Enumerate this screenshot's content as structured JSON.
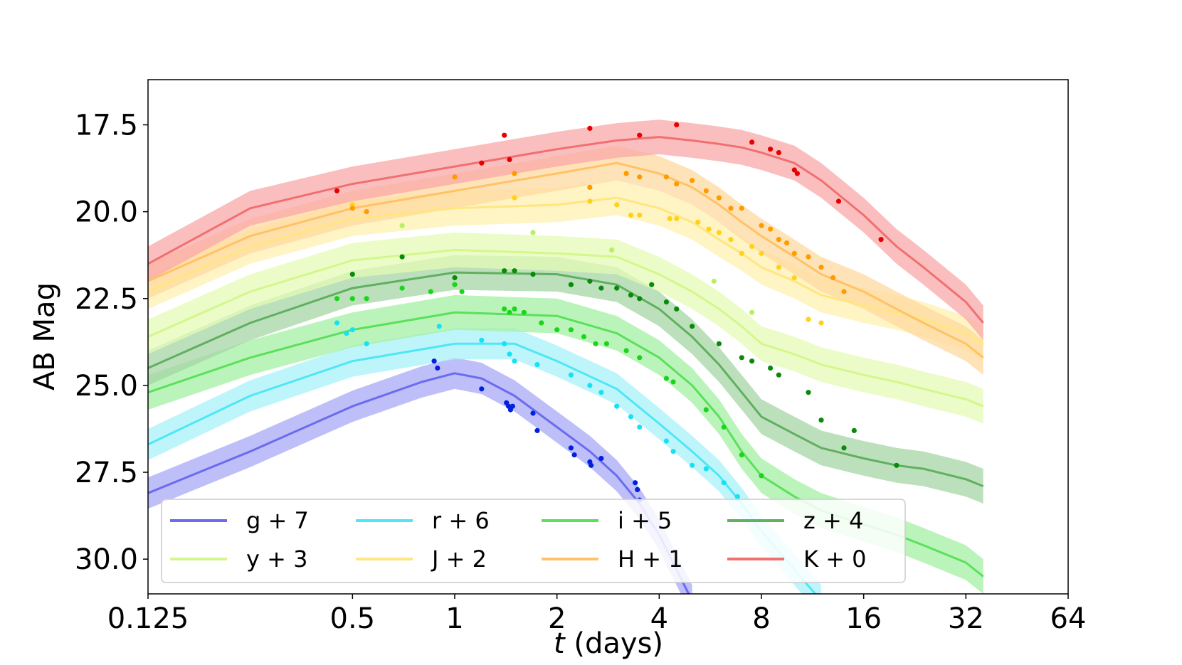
{
  "chart_data": {
    "type": "line",
    "title": "",
    "xlabel_italic": "t",
    "xlabel_rest": " (days)",
    "ylabel": "AB Mag",
    "x_scale": "log2",
    "xlim": [
      0.125,
      64
    ],
    "ylim": [
      31.0,
      16.2
    ],
    "y_inverted": true,
    "grid": false,
    "legend_placement": "lower-left",
    "legend_columns": 4,
    "x_ticks": [
      {
        "value": 0.125,
        "label": "0.125"
      },
      {
        "value": 0.5,
        "label": "0.5"
      },
      {
        "value": 1,
        "label": "1"
      },
      {
        "value": 2,
        "label": "2"
      },
      {
        "value": 4,
        "label": "4"
      },
      {
        "value": 8,
        "label": "8"
      },
      {
        "value": 16,
        "label": "16"
      },
      {
        "value": 32,
        "label": "32"
      },
      {
        "value": 64,
        "label": "64"
      }
    ],
    "y_ticks": [
      {
        "value": 17.5,
        "label": "17.5"
      },
      {
        "value": 20.0,
        "label": "20.0"
      },
      {
        "value": 22.5,
        "label": "22.5"
      },
      {
        "value": 25.0,
        "label": "25.0"
      },
      {
        "value": 27.5,
        "label": "27.5"
      },
      {
        "value": 30.0,
        "label": "30.0"
      }
    ],
    "series": [
      {
        "name": "g + 7",
        "line_color": "#6b6bf0",
        "band_color": "#a8a8f7",
        "point_color": "#0022e0",
        "band_width": 0.45,
        "x": [
          0.125,
          0.25,
          0.5,
          0.8,
          1.0,
          1.2,
          1.5,
          2.0,
          2.5,
          3.0,
          3.5,
          4.0,
          5.0
        ],
        "y": [
          28.1,
          26.9,
          25.6,
          24.9,
          24.65,
          24.8,
          25.3,
          26.2,
          26.9,
          27.6,
          28.4,
          29.3,
          31.2
        ],
        "points_x": [
          0.87,
          0.89,
          1.2,
          1.42,
          1.44,
          1.46,
          1.48,
          1.7,
          1.75,
          2.2,
          2.25,
          2.5,
          2.52,
          2.7,
          3.4,
          3.45,
          3.5
        ],
        "points_y": [
          24.3,
          24.5,
          25.1,
          25.5,
          25.6,
          25.7,
          25.6,
          25.8,
          26.3,
          26.8,
          27.0,
          27.2,
          27.3,
          27.1,
          27.8,
          28.0,
          28.3
        ]
      },
      {
        "name": "r + 6",
        "line_color": "#4fe6f5",
        "band_color": "#a8f2fa",
        "point_color": "#17e2f5",
        "band_width": 0.45,
        "x": [
          0.125,
          0.25,
          0.5,
          1.0,
          1.5,
          2.0,
          3.0,
          4.0,
          5.0,
          6.0,
          7.0,
          8.0,
          10.0,
          12.0
        ],
        "y": [
          26.7,
          25.3,
          24.3,
          23.8,
          23.8,
          24.3,
          25.1,
          26.1,
          26.9,
          27.6,
          28.4,
          29.2,
          30.3,
          31.2
        ],
        "points_x": [
          0.45,
          0.48,
          0.5,
          0.55,
          0.9,
          1.2,
          1.4,
          1.45,
          1.5,
          1.75,
          2.2,
          2.5,
          2.7,
          3.0,
          3.3,
          3.5,
          4.2,
          4.4,
          5.0,
          5.5,
          6.2,
          6.8
        ],
        "points_y": [
          23.2,
          23.5,
          23.4,
          23.8,
          23.3,
          23.7,
          23.8,
          24.1,
          24.3,
          24.4,
          24.7,
          25.0,
          25.2,
          25.6,
          25.9,
          26.2,
          26.6,
          26.9,
          27.3,
          27.4,
          27.8,
          28.2
        ]
      },
      {
        "name": "i + 5",
        "line_color": "#5be05b",
        "band_color": "#a4f0a4",
        "point_color": "#1ad61a",
        "band_width": 0.5,
        "x": [
          0.125,
          0.25,
          0.5,
          1.0,
          2.0,
          3.0,
          4.0,
          5.0,
          6.0,
          7.0,
          8.0,
          10.0,
          12.0,
          16.0,
          20.0,
          24.0,
          32.0,
          36.0
        ],
        "y": [
          25.2,
          24.2,
          23.4,
          22.9,
          23.0,
          23.5,
          24.2,
          25.0,
          25.9,
          26.9,
          27.6,
          28.2,
          28.6,
          29.0,
          29.3,
          29.6,
          30.1,
          30.5
        ],
        "points_x": [
          0.45,
          0.5,
          0.55,
          0.7,
          0.85,
          1.0,
          1.05,
          1.4,
          1.45,
          1.5,
          1.6,
          1.8,
          2.0,
          2.2,
          2.4,
          2.6,
          2.8,
          3.2,
          3.5,
          4.2,
          4.4,
          5.5,
          6.2,
          7.0,
          8.0
        ],
        "points_y": [
          22.5,
          22.5,
          22.5,
          22.2,
          22.3,
          22.1,
          22.3,
          22.8,
          22.9,
          22.8,
          22.9,
          23.2,
          23.4,
          23.4,
          23.6,
          23.8,
          23.8,
          24.0,
          24.2,
          24.8,
          24.9,
          25.7,
          26.2,
          27.0,
          27.6
        ]
      },
      {
        "name": "z + 4",
        "line_color": "#5fb05f",
        "band_color": "#a6d6a6",
        "point_color": "#0a8a0a",
        "band_width": 0.5,
        "x": [
          0.125,
          0.25,
          0.5,
          1.0,
          2.0,
          3.0,
          4.0,
          5.0,
          6.0,
          7.0,
          8.0,
          10.0,
          12.0,
          16.0,
          20.0,
          24.0,
          32.0,
          36.0
        ],
        "y": [
          24.5,
          23.2,
          22.2,
          21.75,
          21.8,
          22.1,
          22.8,
          23.6,
          24.4,
          25.2,
          25.9,
          26.4,
          26.8,
          27.1,
          27.3,
          27.4,
          27.7,
          27.9
        ],
        "points_x": [
          0.5,
          0.7,
          1.0,
          1.4,
          1.5,
          1.7,
          2.2,
          2.5,
          2.7,
          3.0,
          3.3,
          3.5,
          3.8,
          4.2,
          4.5,
          5.0,
          6.0,
          7.0,
          7.5,
          8.5,
          9.0,
          11.0,
          12.0,
          14.0,
          15.0,
          20.0
        ],
        "points_y": [
          21.8,
          21.3,
          21.9,
          21.7,
          21.7,
          21.8,
          22.1,
          22.0,
          22.2,
          22.2,
          22.4,
          22.5,
          22.1,
          22.6,
          22.8,
          23.3,
          23.8,
          24.2,
          24.3,
          24.5,
          24.7,
          25.2,
          26.0,
          26.8,
          26.3,
          27.3
        ]
      },
      {
        "name": "y + 3",
        "line_color": "#d4f78c",
        "band_color": "#e4fbb6",
        "point_color": "#b8f060",
        "band_width": 0.5,
        "x": [
          0.125,
          0.25,
          0.5,
          1.0,
          2.0,
          3.0,
          4.0,
          5.0,
          6.0,
          7.0,
          8.0,
          10.0,
          12.0,
          16.0,
          20.0,
          24.0,
          32.0,
          36.0
        ],
        "y": [
          23.6,
          22.3,
          21.4,
          21.1,
          21.2,
          21.3,
          21.8,
          22.3,
          22.8,
          23.3,
          23.8,
          24.1,
          24.4,
          24.7,
          24.9,
          25.1,
          25.4,
          25.6
        ],
        "points_x": [
          0.7,
          1.7,
          2.9,
          5.8,
          7.5
        ],
        "points_y": [
          20.4,
          20.6,
          21.1,
          22.0,
          22.9
        ]
      },
      {
        "name": "J + 2",
        "line_color": "#ffe680",
        "band_color": "#fff0b0",
        "point_color": "#ffd21a",
        "band_width": 0.5,
        "x": [
          0.125,
          0.25,
          0.5,
          1.0,
          2.0,
          3.0,
          4.0,
          5.0,
          6.0,
          7.0,
          8.0,
          10.0,
          12.0,
          16.0,
          20.0,
          24.0,
          32.0,
          36.0
        ],
        "y": [
          22.3,
          21.0,
          20.2,
          19.9,
          19.8,
          19.6,
          19.9,
          20.3,
          20.8,
          21.2,
          21.6,
          22.0,
          22.4,
          22.7,
          22.9,
          23.1,
          23.5,
          23.8
        ],
        "points_x": [
          0.5,
          1.5,
          2.5,
          3.0,
          3.3,
          3.5,
          4.3,
          4.5,
          5.2,
          5.6,
          6.0,
          6.5,
          7.0,
          7.5,
          8.0,
          9.0,
          10.0,
          11.0,
          12.0
        ],
        "points_y": [
          19.8,
          19.6,
          19.7,
          19.8,
          20.1,
          20.1,
          20.2,
          20.2,
          20.3,
          20.5,
          20.6,
          20.8,
          21.2,
          21.0,
          21.2,
          21.6,
          21.9,
          23.1,
          23.2
        ]
      },
      {
        "name": "H + 1",
        "line_color": "#ffc266",
        "band_color": "#ffd9a0",
        "point_color": "#ff9a00",
        "band_width": 0.5,
        "x": [
          0.125,
          0.25,
          0.5,
          1.0,
          2.0,
          3.0,
          4.0,
          5.0,
          6.0,
          7.0,
          8.0,
          10.0,
          12.0,
          16.0,
          20.0,
          24.0,
          32.0,
          36.0
        ],
        "y": [
          22.0,
          20.7,
          19.9,
          19.4,
          18.9,
          18.6,
          18.9,
          19.3,
          19.8,
          20.3,
          20.7,
          21.3,
          21.8,
          22.3,
          22.8,
          23.2,
          23.8,
          24.2
        ],
        "points_x": [
          0.5,
          0.55,
          1.0,
          1.5,
          2.5,
          3.2,
          3.5,
          4.2,
          4.5,
          5.0,
          5.5,
          6.0,
          6.5,
          7.0,
          8.0,
          8.5,
          9.0,
          9.5,
          10.0,
          11.0,
          12.0,
          13.0,
          14.0
        ],
        "points_y": [
          19.9,
          20.0,
          19.0,
          18.9,
          19.3,
          18.9,
          19.0,
          19.0,
          19.2,
          19.1,
          19.4,
          19.6,
          19.9,
          19.9,
          20.4,
          20.5,
          20.8,
          20.9,
          21.2,
          21.3,
          21.6,
          21.9,
          22.3
        ]
      },
      {
        "name": "K + 0",
        "line_color": "#f07070",
        "band_color": "#f9a8a8",
        "point_color": "#e60000",
        "band_width": 0.5,
        "x": [
          0.125,
          0.25,
          0.5,
          1.0,
          2.0,
          3.0,
          4.0,
          5.0,
          6.0,
          7.0,
          8.0,
          10.0,
          12.0,
          16.0,
          20.0,
          24.0,
          32.0,
          36.0
        ],
        "y": [
          21.5,
          19.9,
          19.2,
          18.7,
          18.2,
          17.95,
          17.85,
          17.95,
          18.05,
          18.15,
          18.3,
          18.6,
          19.1,
          20.1,
          21.0,
          21.6,
          22.6,
          23.2
        ],
        "points_x": [
          0.45,
          1.2,
          1.4,
          1.45,
          2.5,
          3.5,
          4.5,
          7.5,
          8.5,
          9.0,
          10.0,
          10.2,
          13.5,
          18.0
        ],
        "points_y": [
          19.4,
          18.6,
          17.8,
          18.5,
          17.6,
          17.8,
          17.5,
          18.0,
          18.2,
          18.3,
          18.8,
          18.9,
          19.7,
          20.8
        ]
      }
    ]
  }
}
